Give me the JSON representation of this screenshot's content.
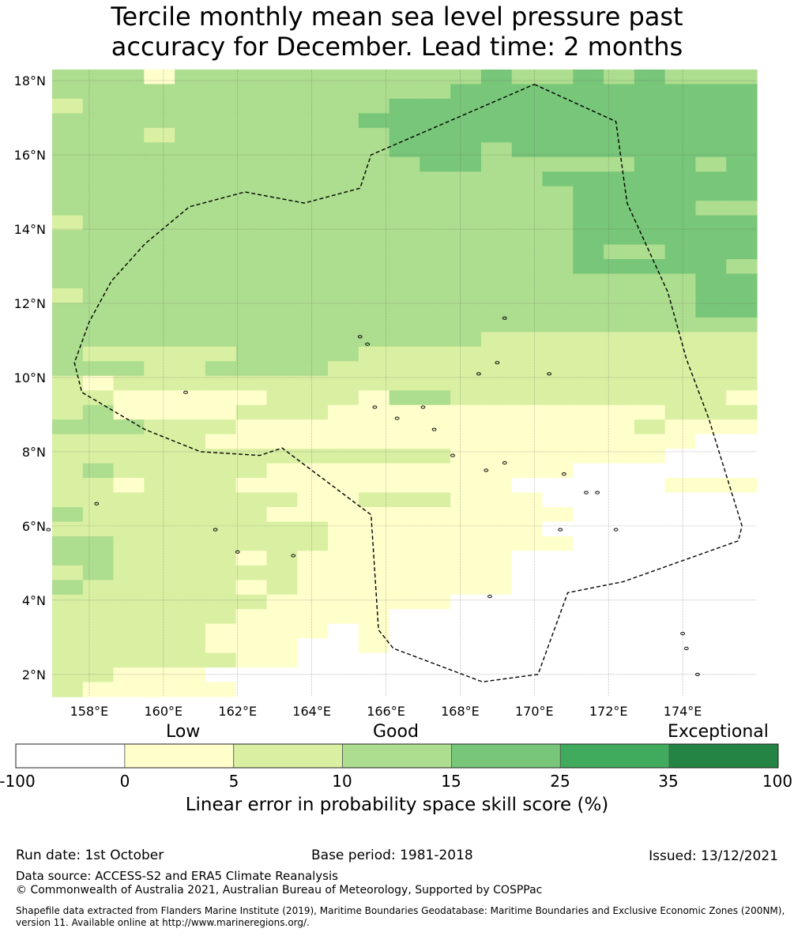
{
  "title": {
    "line1": "Tercile monthly mean sea level pressure past",
    "line2": "accuracy for December. Lead time: 2 months"
  },
  "map": {
    "lon_range": [
      157.0,
      176.0
    ],
    "lat_range": [
      1.4,
      18.3
    ],
    "cell_size_deg": 0.833,
    "grid_note": "skill score categories per cell: 0=<0 (white), 1=0-5, 2=5-10, 3=10-15, 4=15-25, 5=25-35, 6=35-100",
    "grid": [
      "33313333333333433434333",
      "33333333333334444444444",
      "23333333333444444444444",
      "33333333334444444444444",
      "33323333333444444444444",
      "33333333333444344444444",
      "33333333333344333334434",
      "33333333333333334444444",
      "33333333333333333444444",
      "33333333333333333444433",
      "23333333333333333444444",
      "33333333333333333444444",
      "33333333333333333433444",
      "33333333333333333444443",
      "33333333333333333333344",
      "23333333333333333333344",
      "33333333333333333333344",
      "33333333333333333333333",
      "33333333333333222222222",
      "32222233332222222222222",
      "33322333322222222222222",
      "21222222222222222222222",
      "22111112221332222222221",
      "23111122211111111111222",
      "33322211111111111112111",
      "22222111111111111111100",
      "22222222222221111111000",
      "23222221111111111000000",
      "22122211111111100000111",
      "22222222112221110000000",
      "32222221111111111000000",
      "22222222211111110000000",
      "33222222211111111000000",
      "33222212111111100000000",
      "23222222111111100000000",
      "32222212111111100000000",
      "22222221111110000000000",
      "22222211111000000000000",
      "22222111101000000000000",
      "22222111001000000000000",
      "22222211000000000000000",
      "22111000000000000000000",
      "21111100000000000000000"
    ],
    "x_ticks": [
      "158°E",
      "160°E",
      "162°E",
      "164°E",
      "166°E",
      "168°E",
      "170°E",
      "172°E",
      "174°E"
    ],
    "x_tick_values": [
      158,
      160,
      162,
      164,
      166,
      168,
      170,
      172,
      174
    ],
    "y_ticks": [
      "18°N",
      "16°N",
      "14°N",
      "12°N",
      "10°N",
      "8°N",
      "6°N",
      "4°N",
      "2°N"
    ],
    "y_tick_values": [
      18,
      16,
      14,
      12,
      10,
      8,
      6,
      4,
      2
    ],
    "eez_boundary_lonlat": [
      [
        170.0,
        17.9
      ],
      [
        172.2,
        16.9
      ],
      [
        172.5,
        14.7
      ],
      [
        173.6,
        12.3
      ],
      [
        174.1,
        10.5
      ],
      [
        174.7,
        8.9
      ],
      [
        175.6,
        6.0
      ],
      [
        175.5,
        5.6
      ],
      [
        172.4,
        4.5
      ],
      [
        170.9,
        4.2
      ],
      [
        170.1,
        2.0
      ],
      [
        168.6,
        1.8
      ],
      [
        166.2,
        2.7
      ],
      [
        165.8,
        3.2
      ],
      [
        165.6,
        6.3
      ],
      [
        163.2,
        8.1
      ],
      [
        162.6,
        7.9
      ],
      [
        161.0,
        8.0
      ],
      [
        159.5,
        8.6
      ],
      [
        157.8,
        9.6
      ],
      [
        157.6,
        10.4
      ],
      [
        158.0,
        11.5
      ],
      [
        158.6,
        12.6
      ],
      [
        159.5,
        13.6
      ],
      [
        160.7,
        14.6
      ],
      [
        162.2,
        15.0
      ],
      [
        163.8,
        14.7
      ],
      [
        165.3,
        15.1
      ],
      [
        165.6,
        16.0
      ],
      [
        170.0,
        17.9
      ]
    ]
  },
  "colorbar": {
    "categories": [
      "Low",
      "Good",
      "Exceptional"
    ],
    "boundaries": [
      "-100",
      "0",
      "5",
      "10",
      "15",
      "25",
      "35",
      "100"
    ],
    "colors": [
      "#ffffff",
      "#ffffcc",
      "#d9f0a3",
      "#addd8e",
      "#78c679",
      "#41ab5d",
      "#238443"
    ],
    "label": "Linear error in probability space skill score (%)"
  },
  "footer": {
    "run_date": "Run date: 1st October",
    "base_period": "Base period: 1981-2018",
    "issued": "Issued: 13/12/2021",
    "data_source": "Data source: ACCESS-S2 and ERA5 Climate Reanalysis",
    "copyright": "© Commonwealth of Australia 2021, Australian Bureau of Meteorology, Supported by COSPPac",
    "shapefile": "Shapefile data extracted from Flanders Marine Institute (2019), Maritime Boundaries Geodatabase: Maritime Boundaries and Exclusive Economic Zones (200NM), version 11. Available online at http://www.marineregions.org/."
  }
}
